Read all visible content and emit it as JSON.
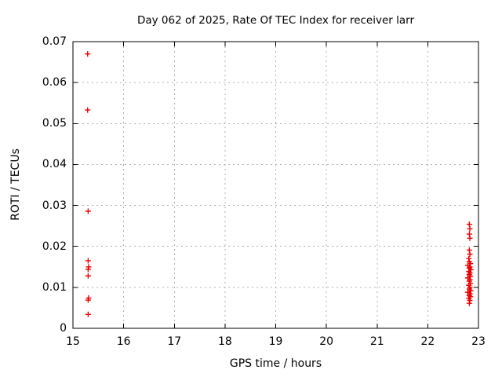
{
  "chart_data": {
    "type": "scatter",
    "title": "Day 062 of 2025, Rate Of TEC Index for receiver larr",
    "xlabel": "GPS time / hours",
    "ylabel": "ROTI / TECUs",
    "xlim": [
      15,
      23
    ],
    "ylim": [
      0,
      0.07
    ],
    "xtick_values": [
      15,
      16,
      17,
      18,
      19,
      20,
      21,
      22,
      23
    ],
    "xtick_labels": [
      "15",
      "16",
      "17",
      "18",
      "19",
      "20",
      "21",
      "22",
      "23"
    ],
    "ytick_values": [
      0,
      0.01,
      0.02,
      0.03,
      0.04,
      0.05,
      0.06,
      0.07
    ],
    "ytick_labels": [
      "0",
      "0.01",
      "0.02",
      "0.03",
      "0.04",
      "0.05",
      "0.06",
      "0.07"
    ],
    "grid": true,
    "legend": "none",
    "marker": "plus",
    "marker_color": "#ee0000",
    "grid_color": "#b0b0b0",
    "axis_color": "#000000",
    "background_color": "#ffffff",
    "series": [
      {
        "name": "ROTI",
        "points": [
          [
            15.29,
            0.067
          ],
          [
            15.29,
            0.0533
          ],
          [
            15.3,
            0.0286
          ],
          [
            15.3,
            0.0165
          ],
          [
            15.31,
            0.015
          ],
          [
            15.3,
            0.0144
          ],
          [
            15.3,
            0.0128
          ],
          [
            15.31,
            0.0074
          ],
          [
            15.3,
            0.0069
          ],
          [
            15.3,
            0.0034
          ],
          [
            22.82,
            0.0254
          ],
          [
            22.83,
            0.0243
          ],
          [
            22.82,
            0.023
          ],
          [
            22.83,
            0.022
          ],
          [
            22.82,
            0.0191
          ],
          [
            22.83,
            0.0181
          ],
          [
            22.81,
            0.017
          ],
          [
            22.82,
            0.0163
          ],
          [
            22.84,
            0.0158
          ],
          [
            22.79,
            0.0154
          ],
          [
            22.83,
            0.015
          ],
          [
            22.82,
            0.0147
          ],
          [
            22.85,
            0.0143
          ],
          [
            22.81,
            0.0139
          ],
          [
            22.83,
            0.0135
          ],
          [
            22.82,
            0.0131
          ],
          [
            22.84,
            0.0127
          ],
          [
            22.79,
            0.0123
          ],
          [
            22.83,
            0.0119
          ],
          [
            22.82,
            0.0115
          ],
          [
            22.84,
            0.011
          ],
          [
            22.81,
            0.0105
          ],
          [
            22.83,
            0.01
          ],
          [
            22.82,
            0.0096
          ],
          [
            22.85,
            0.0092
          ],
          [
            22.79,
            0.0088
          ],
          [
            22.83,
            0.0084
          ],
          [
            22.82,
            0.008
          ],
          [
            22.84,
            0.0077
          ],
          [
            22.81,
            0.0073
          ],
          [
            22.83,
            0.0068
          ],
          [
            22.82,
            0.0061
          ]
        ]
      }
    ]
  }
}
